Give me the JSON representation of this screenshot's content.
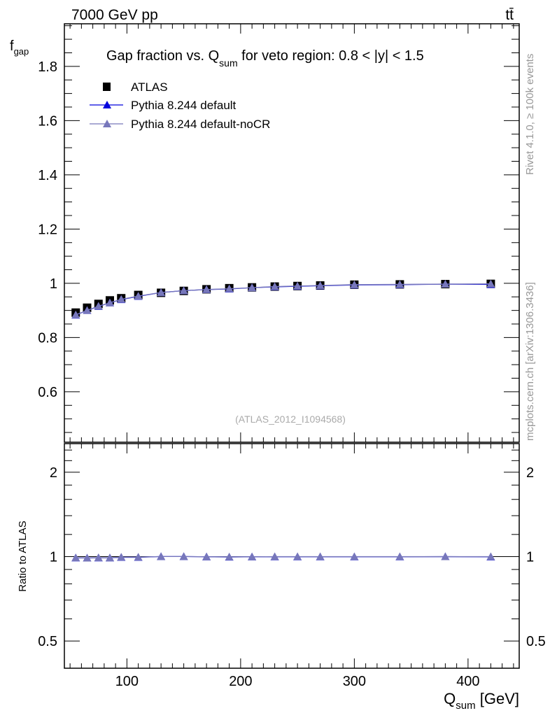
{
  "header": {
    "left": "7000 GeV pp",
    "right": "tt̄"
  },
  "side": {
    "rivet": "Rivet 4.1.0, ≥ 100k events",
    "mcplots": "mcplots.cern.ch [arXiv:1306.3436]"
  },
  "chart_data": [
    {
      "type": "line",
      "title_main": "Gap fraction vs. Q",
      "title_sub": "sum",
      "title_rest": " for veto region: 0.8 < |y| < 1.5",
      "ylabel_main": "f",
      "ylabel_sub": "gap",
      "watermark": "(ATLAS_2012_I1094568)",
      "xlim": [
        45,
        445
      ],
      "ylim": [
        0.414,
        1.957
      ],
      "yticks": [
        0.6,
        0.8,
        1,
        1.2,
        1.4,
        1.6,
        1.8
      ],
      "ytick_labels": [
        "0.6",
        "0.8",
        "1",
        "1.2",
        "1.4",
        "1.6",
        "1.8"
      ],
      "x": [
        55,
        65,
        75,
        85,
        95,
        110,
        130,
        150,
        170,
        190,
        210,
        230,
        250,
        270,
        300,
        340,
        380,
        420
      ],
      "series": [
        {
          "name": "ATLAS",
          "color": "#000000",
          "marker": "square",
          "values": [
            0.892,
            0.91,
            0.924,
            0.937,
            0.945,
            0.957,
            0.965,
            0.972,
            0.978,
            0.982,
            0.985,
            0.988,
            0.99,
            0.992,
            0.995,
            0.996,
            0.997,
            0.998
          ]
        },
        {
          "name": "Pythia 8.244 default",
          "color": "#0000dd",
          "marker": "triangle",
          "values": [
            0.883,
            0.9,
            0.915,
            0.928,
            0.94,
            0.952,
            0.966,
            0.973,
            0.977,
            0.979,
            0.984,
            0.987,
            0.989,
            0.991,
            0.994,
            0.995,
            0.997,
            0.996
          ]
        },
        {
          "name": "Pythia 8.244 default-noCR",
          "color": "#7777bb",
          "marker": "triangle",
          "values": [
            0.884,
            0.9,
            0.916,
            0.928,
            0.941,
            0.953,
            0.966,
            0.973,
            0.977,
            0.98,
            0.984,
            0.988,
            0.99,
            0.992,
            0.995,
            0.996,
            0.997,
            0.998
          ]
        }
      ]
    },
    {
      "type": "line",
      "ylabel": "Ratio to ATLAS",
      "yscale": "log",
      "ylim": [
        0.4,
        2.53
      ],
      "yticks": [
        0.5,
        1,
        2
      ],
      "ytick_labels": [
        "0.5",
        "1",
        "2"
      ],
      "xlabel_main": "Q",
      "xlabel_sub": "sum",
      "xlabel_rest": " [GeV]",
      "xticks": [
        100,
        200,
        300,
        400
      ],
      "xtick_labels": [
        "100",
        "200",
        "300",
        "400"
      ]
    }
  ]
}
